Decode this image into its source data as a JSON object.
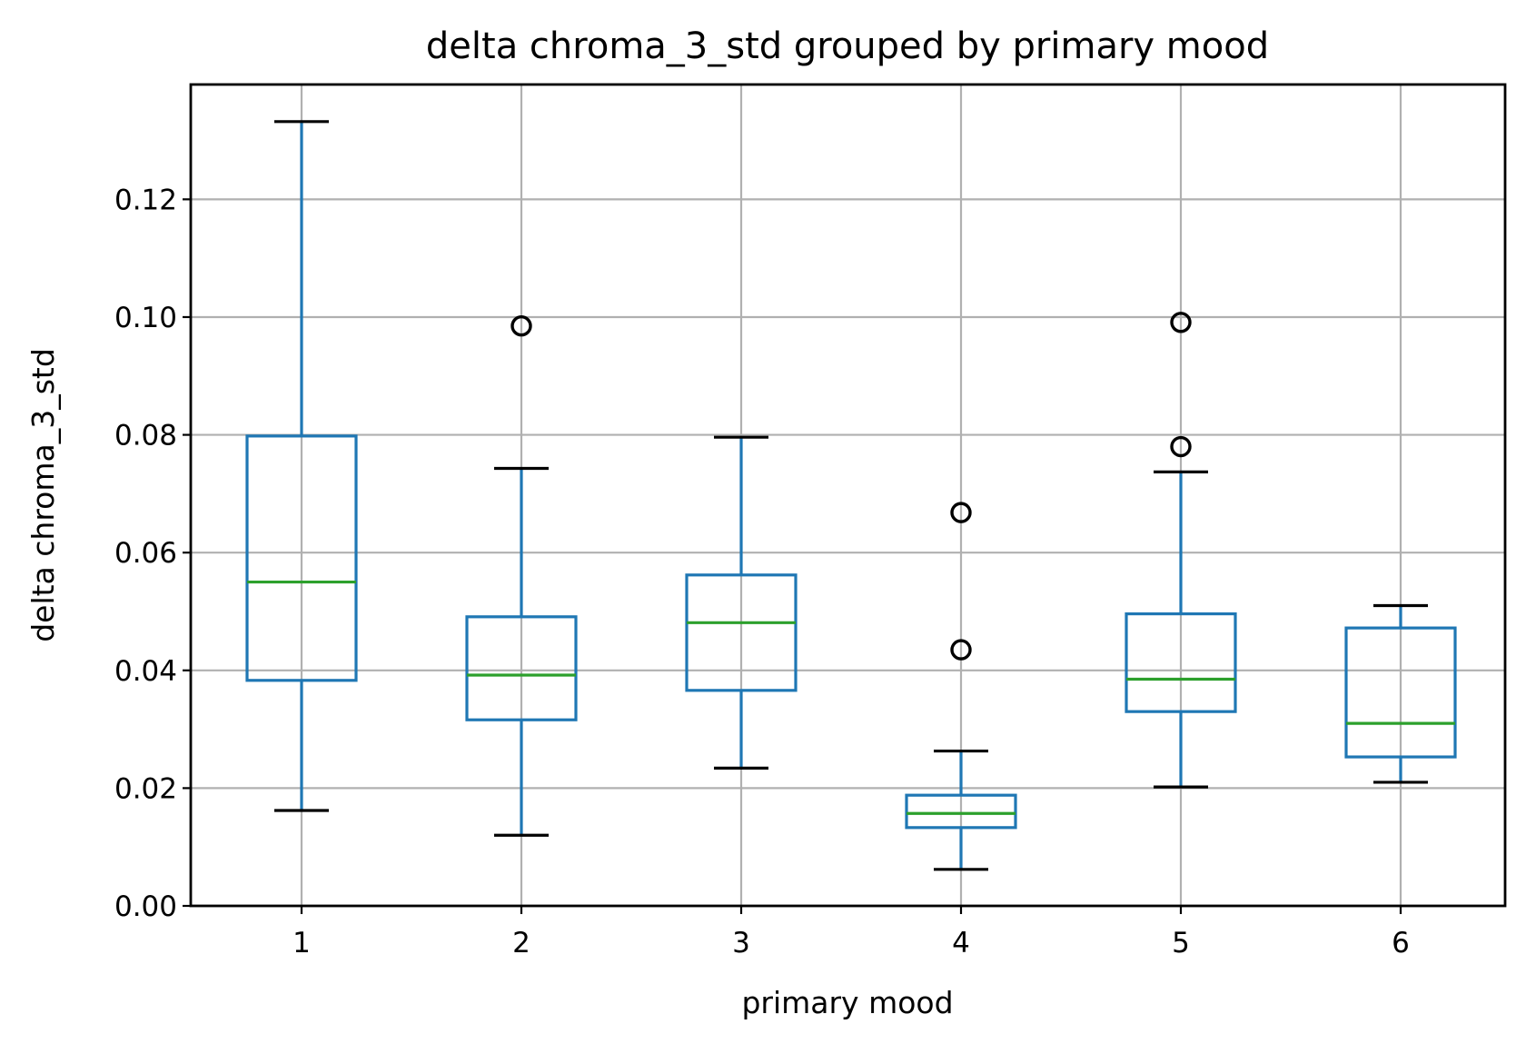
{
  "chart_data": {
    "type": "box",
    "title": "delta chroma_3_std grouped by primary mood",
    "xlabel": "primary mood",
    "ylabel": "delta chroma_3_std",
    "categories": [
      "1",
      "2",
      "3",
      "4",
      "5",
      "6"
    ],
    "ylim": [
      0.0,
      0.1395
    ],
    "yticks": [
      0.0,
      0.02,
      0.04,
      0.06,
      0.08,
      0.1,
      0.12
    ],
    "ytick_labels": [
      "0.00",
      "0.02",
      "0.04",
      "0.06",
      "0.08",
      "0.10",
      "0.12"
    ],
    "grid": true,
    "boxes": [
      {
        "category": "1",
        "whisker_low": 0.0162,
        "q1": 0.0383,
        "median": 0.055,
        "q3": 0.0798,
        "whisker_high": 0.1332,
        "outliers": []
      },
      {
        "category": "2",
        "whisker_low": 0.012,
        "q1": 0.0316,
        "median": 0.0392,
        "q3": 0.0491,
        "whisker_high": 0.0743,
        "outliers": [
          0.0985
        ]
      },
      {
        "category": "3",
        "whisker_low": 0.0234,
        "q1": 0.0366,
        "median": 0.0481,
        "q3": 0.0562,
        "whisker_high": 0.0796,
        "outliers": []
      },
      {
        "category": "4",
        "whisker_low": 0.0062,
        "q1": 0.0133,
        "median": 0.0157,
        "q3": 0.0188,
        "whisker_high": 0.0263,
        "outliers": [
          0.0435,
          0.0668
        ]
      },
      {
        "category": "5",
        "whisker_low": 0.0202,
        "q1": 0.033,
        "median": 0.0385,
        "q3": 0.0496,
        "whisker_high": 0.0737,
        "outliers": [
          0.078,
          0.0991
        ]
      },
      {
        "category": "6",
        "whisker_low": 0.021,
        "q1": 0.0253,
        "median": 0.031,
        "q3": 0.0472,
        "whisker_high": 0.051,
        "outliers": []
      }
    ],
    "colors": {
      "box": "#1f77b4",
      "median": "#2ca02c",
      "cap": "#000000",
      "outlier": "#000000",
      "grid": "#b0b0b0",
      "frame": "#000000"
    }
  }
}
